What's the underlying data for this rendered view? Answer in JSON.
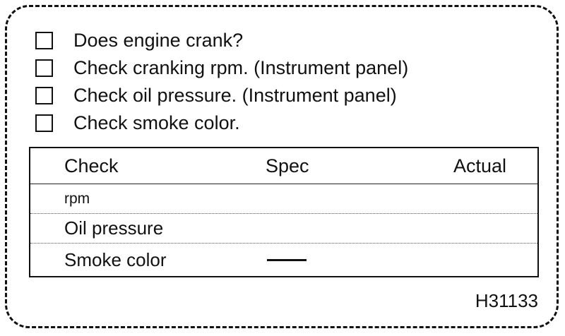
{
  "checklist": {
    "items": [
      {
        "label": "Does engine crank?",
        "checked": false
      },
      {
        "label": "Check cranking rpm. (Instrument panel)",
        "checked": false
      },
      {
        "label": "Check oil pressure. (Instrument panel)",
        "checked": false
      },
      {
        "label": "Check smoke color.",
        "checked": false
      }
    ]
  },
  "table": {
    "headers": {
      "check": "Check",
      "spec": "Spec",
      "actual": "Actual"
    },
    "rows": [
      {
        "check": "rpm",
        "spec": "",
        "actual": ""
      },
      {
        "check": "Oil pressure",
        "spec": "",
        "actual": ""
      },
      {
        "check": "Smoke color",
        "spec": "—",
        "actual": ""
      }
    ]
  },
  "figure_id": "H31133"
}
